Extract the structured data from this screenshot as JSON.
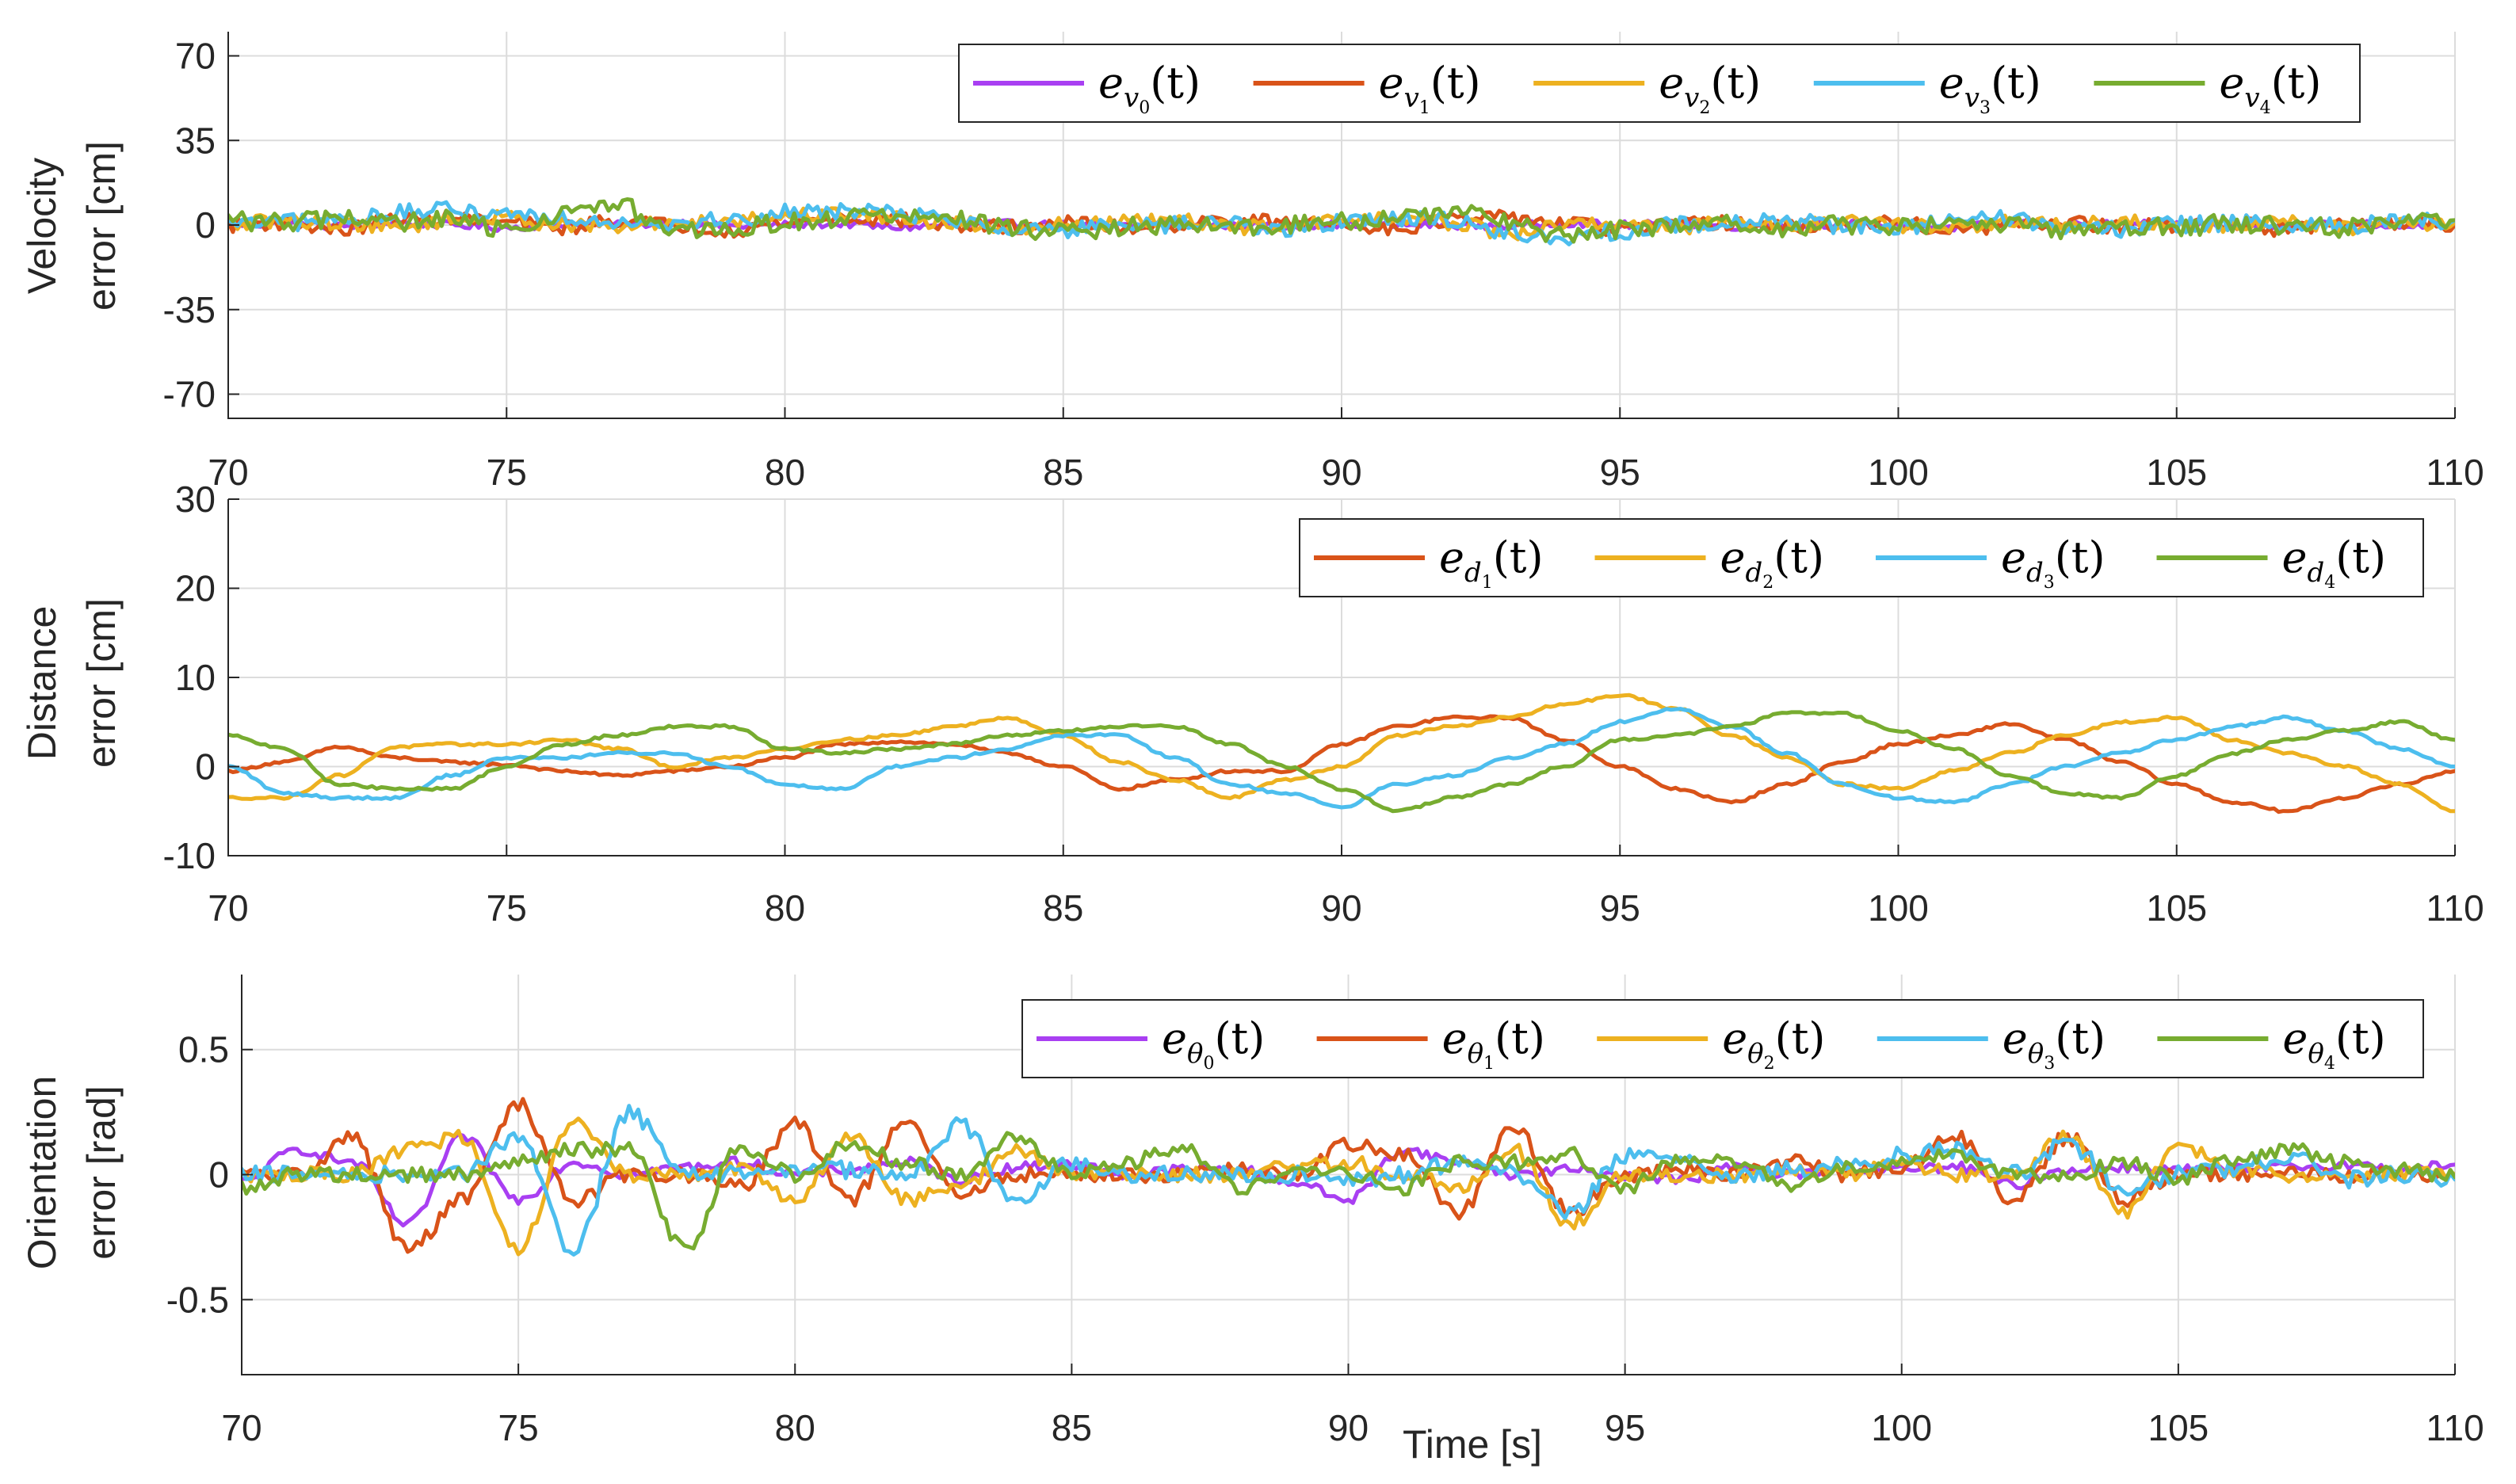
{
  "colors": {
    "purple": "#A93FF2",
    "red": "#D95319",
    "yellow": "#EDB120",
    "blue": "#4DBEEE",
    "green": "#77AC30"
  },
  "chart_data": [
    {
      "type": "line",
      "ylabel_lines": [
        "Velocity",
        "error [cm]"
      ],
      "xlim": [
        70,
        110
      ],
      "ylim": [
        -80,
        80
      ],
      "xticks": [
        70,
        75,
        80,
        85,
        90,
        95,
        100,
        105,
        110
      ],
      "yticks": [
        70,
        35,
        0,
        -35,
        -70
      ],
      "yticklabels": [
        "70",
        "35",
        "0",
        "-35",
        "-70"
      ],
      "legend_location": "top-right",
      "series": [
        {
          "name": "e_{v_0}(t)",
          "base": "e",
          "sub": "v",
          "idx": "0",
          "color": "#A93FF2",
          "noise": 1.6,
          "wave": [],
          "y": [
            0,
            0.5,
            -0.5,
            1,
            0,
            -1,
            0.5,
            0,
            1,
            -0.5,
            0,
            0.5,
            -1,
            0,
            0.5,
            0,
            -0.5,
            1,
            0,
            -0.5,
            0.5,
            0,
            0,
            -0.5,
            1,
            0,
            0.5,
            -0.5,
            0,
            0.5,
            0,
            -1,
            0.5,
            0,
            0.5,
            0,
            -0.5,
            0,
            0.5,
            0,
            0
          ]
        },
        {
          "name": "e_{v_1}(t)",
          "base": "e",
          "sub": "v",
          "idx": "1",
          "color": "#D95319",
          "noise": 3.0,
          "wave": [],
          "y": [
            0,
            1,
            -2,
            2,
            3,
            1,
            -1,
            2,
            0,
            -2,
            1,
            3,
            2,
            0,
            -1,
            1,
            -1,
            0,
            2,
            1,
            0,
            -1,
            2,
            3,
            1,
            -2,
            0,
            1,
            -1,
            0,
            1,
            -3,
            0,
            1,
            -1,
            0,
            1,
            -2,
            0,
            1,
            0
          ]
        },
        {
          "name": "e_{v_2}(t)",
          "base": "e",
          "sub": "v",
          "idx": "2",
          "color": "#EDB120",
          "noise": 3.0,
          "wave": [],
          "y": [
            0,
            2,
            1,
            -1,
            2,
            3,
            0,
            -1,
            1,
            2,
            4,
            5,
            3,
            1,
            -1,
            0,
            1,
            2,
            -1,
            0,
            2,
            3,
            1,
            -4,
            0,
            1,
            -1,
            2,
            0,
            1,
            0,
            -1,
            1,
            0,
            2,
            -1,
            0,
            1,
            -1,
            0,
            1
          ]
        },
        {
          "name": "e_{v_3}(t)",
          "base": "e",
          "sub": "v",
          "idx": "3",
          "color": "#4DBEEE",
          "noise": 3.5,
          "wave": [],
          "y": [
            0,
            1,
            2,
            5,
            6,
            5,
            3,
            2,
            1,
            2,
            5,
            6,
            5,
            2,
            -1,
            -2,
            -1,
            0,
            1,
            -2,
            1,
            3,
            2,
            -3,
            -6,
            -3,
            0,
            1,
            2,
            0,
            -1,
            1,
            3,
            -1,
            -2,
            0,
            1,
            -1,
            0,
            1,
            2
          ]
        },
        {
          "name": "e_{v_4}(t)",
          "base": "e",
          "sub": "v",
          "idx": "4",
          "color": "#77AC30",
          "noise": 4.0,
          "wave": [],
          "y": [
            2,
            1,
            3,
            1,
            2,
            -2,
            5,
            8,
            -3,
            -2,
            1,
            3,
            4,
            2,
            -1,
            -3,
            -1,
            0,
            -1,
            0,
            1,
            4,
            5,
            2,
            -5,
            -2,
            0,
            1,
            -2,
            0,
            -1,
            1,
            0,
            -2,
            0,
            -1,
            1,
            0,
            -1,
            0,
            2
          ]
        }
      ]
    },
    {
      "type": "line",
      "ylabel_lines": [
        "Distance",
        "error [cm]"
      ],
      "xlim": [
        70,
        110
      ],
      "ylim": [
        -10,
        30
      ],
      "xticks": [
        70,
        75,
        80,
        85,
        90,
        95,
        100,
        105,
        110
      ],
      "yticks": [
        30,
        20,
        10,
        0,
        -10
      ],
      "yticklabels": [
        "30",
        "20",
        "10",
        "0",
        "-10"
      ],
      "legend_location": "top-right",
      "series": [
        {
          "name": "e_{d_1}(t)",
          "base": "e",
          "sub": "d",
          "idx": "1",
          "color": "#D95319",
          "noise": 0.15,
          "wave": [],
          "y": [
            -0.5,
            0.5,
            2.2,
            1,
            0.5,
            0.2,
            -0.5,
            -1,
            -0.5,
            0,
            1,
            2.5,
            2.8,
            2.5,
            1.5,
            0,
            -2.5,
            -1.5,
            -0.5,
            -0.5,
            2.5,
            4.5,
            5.5,
            5.5,
            3,
            0,
            -2.5,
            -4,
            -2,
            0.5,
            2.5,
            3.5,
            4.8,
            3,
            0.5,
            -2,
            -4,
            -5,
            -3.5,
            -2,
            -0.5
          ]
        },
        {
          "name": "e_{d_2}(t)",
          "base": "e",
          "sub": "d",
          "idx": "2",
          "color": "#EDB120",
          "noise": 0.15,
          "wave": [],
          "y": [
            -3.5,
            -3.5,
            -1,
            2.2,
            2.5,
            2.5,
            3,
            2,
            0,
            1,
            2,
            3,
            3.5,
            4.5,
            5.5,
            3.5,
            0.5,
            -1.5,
            -3.5,
            -1.5,
            0,
            3.5,
            4.5,
            5.5,
            7,
            8,
            6.5,
            3.5,
            1,
            -2,
            -2.5,
            -0.5,
            1.5,
            3.5,
            5,
            5.5,
            3,
            1.5,
            0,
            -2,
            -5
          ]
        },
        {
          "name": "e_{d_3}(t)",
          "base": "e",
          "sub": "d",
          "idx": "3",
          "color": "#4DBEEE",
          "noise": 0.15,
          "wave": [],
          "y": [
            0,
            -3,
            -3.5,
            -3.5,
            -1,
            1,
            1,
            1.5,
            1.5,
            0,
            -2,
            -2.5,
            0,
            1,
            2,
            3.5,
            3.5,
            1,
            -2,
            -3,
            -4.5,
            -2,
            -1,
            1,
            2.5,
            5,
            6.5,
            4.5,
            1.5,
            -2,
            -3.5,
            -4,
            -2,
            0,
            1.5,
            3,
            4.5,
            5.5,
            4,
            2,
            0
          ]
        },
        {
          "name": "e_{d_4}(t)",
          "base": "e",
          "sub": "d",
          "idx": "4",
          "color": "#77AC30",
          "noise": 0.15,
          "wave": [],
          "y": [
            3.5,
            2,
            -2,
            -2.5,
            -2.5,
            0,
            2.5,
            3.5,
            4.5,
            4.5,
            2,
            1.5,
            2,
            2.5,
            3.5,
            4,
            4.5,
            4.5,
            2.5,
            0,
            -2.5,
            -5,
            -3.5,
            -2,
            0,
            3,
            3.5,
            4.5,
            6,
            6,
            4,
            2,
            -1,
            -3,
            -3.5,
            -1,
            1.5,
            3,
            4,
            5,
            3
          ]
        }
      ]
    },
    {
      "type": "line",
      "ylabel_lines": [
        "Orientation",
        "error [rad]"
      ],
      "xlabel": "Time [s]",
      "xlim": [
        70,
        110
      ],
      "ylim": [
        -0.8,
        0.8
      ],
      "xticks": [
        70,
        75,
        80,
        85,
        90,
        95,
        100,
        105,
        110
      ],
      "yticks": [
        0.5,
        0,
        -0.5
      ],
      "yticklabels": [
        "0.5",
        "0",
        "-0.5"
      ],
      "legend_location": "top-right",
      "series": [
        {
          "name": "e_{θ_0}(t)",
          "base": "e",
          "sub": "θ",
          "idx": "0",
          "color": "#A93FF2",
          "noise": 0.02,
          "wave": [],
          "y": [
            -0.03,
            0.1,
            0.05,
            -0.2,
            0.15,
            -0.1,
            0.05,
            0,
            0.03,
            0.05,
            0,
            0.02,
            0.05,
            -0.02,
            0.03,
            0.04,
            0,
            0.02,
            0.02,
            -0.03,
            -0.1,
            0.1,
            0.05,
            0,
            0.02,
            0,
            -0.02,
            0.03,
            0,
            0.02,
            0.02,
            0.03,
            -0.04,
            0.02,
            0.03,
            0.02,
            0.02,
            0.03,
            0.04,
            0.02,
            0.04
          ]
        },
        {
          "name": "e_{θ_1}(t)",
          "base": "e",
          "sub": "θ",
          "idx": "1",
          "color": "#D95319",
          "noise": 0.03,
          "wave": [],
          "y": [
            0,
            0,
            0.15,
            -0.3,
            -0.1,
            0.28,
            -0.1,
            0,
            0,
            -0.05,
            0.2,
            -0.1,
            0.2,
            -0.08,
            0,
            0,
            0,
            0,
            0.02,
            0,
            0.12,
            0.08,
            -0.15,
            0.18,
            -0.15,
            0,
            0.02,
            0,
            0.05,
            0,
            0.03,
            0.15,
            -0.1,
            0.15,
            -0.1,
            0,
            0,
            0,
            0,
            0,
            0
          ]
        },
        {
          "name": "e_{θ_2}(t)",
          "base": "e",
          "sub": "θ",
          "idx": "2",
          "color": "#EDB120",
          "noise": 0.03,
          "wave": [],
          "y": [
            0,
            0,
            0,
            0.1,
            0.15,
            -0.3,
            0.22,
            0,
            0,
            0.02,
            -0.1,
            0.15,
            -0.1,
            -0.05,
            0.1,
            0,
            0,
            0,
            0,
            0.03,
            0.05,
            0,
            -0.05,
            0.1,
            -0.2,
            0,
            0,
            0,
            0.02,
            0,
            0.05,
            0,
            0,
            0.15,
            -0.15,
            0.12,
            0.02,
            0,
            0,
            0,
            0
          ]
        },
        {
          "name": "e_{θ_3}(t)",
          "base": "e",
          "sub": "θ",
          "idx": "3",
          "color": "#4DBEEE",
          "noise": 0.035,
          "wave": [],
          "y": [
            0,
            0,
            0,
            0,
            0,
            0.15,
            -0.3,
            0.25,
            0,
            0,
            0.02,
            0.02,
            0,
            0.2,
            -0.1,
            0.05,
            0,
            0,
            0,
            0,
            -0.02,
            0,
            0.05,
            0,
            -0.15,
            0.08,
            0.05,
            0,
            0.02,
            0.05,
            0.08,
            0.1,
            0,
            0.12,
            -0.05,
            0,
            0.02,
            0.08,
            -0.02,
            0,
            -0.02
          ]
        },
        {
          "name": "e_{θ_4}(t)",
          "base": "e",
          "sub": "θ",
          "idx": "4",
          "color": "#77AC30",
          "noise": 0.03,
          "wave": [],
          "y": [
            -0.05,
            0,
            0,
            0,
            0,
            0.05,
            0.1,
            0.1,
            -0.3,
            0.1,
            0,
            0.12,
            0.05,
            0,
            0.15,
            0,
            0.05,
            0.1,
            -0.05,
            0,
            0,
            -0.05,
            0.05,
            0.05,
            0.08,
            -0.05,
            0.05,
            0.05,
            -0.05,
            0.03,
            0.05,
            0.08,
            0,
            0,
            0.05,
            -0.02,
            0.05,
            0.1,
            0.05,
            0.02,
            -0.01
          ]
        }
      ]
    }
  ]
}
